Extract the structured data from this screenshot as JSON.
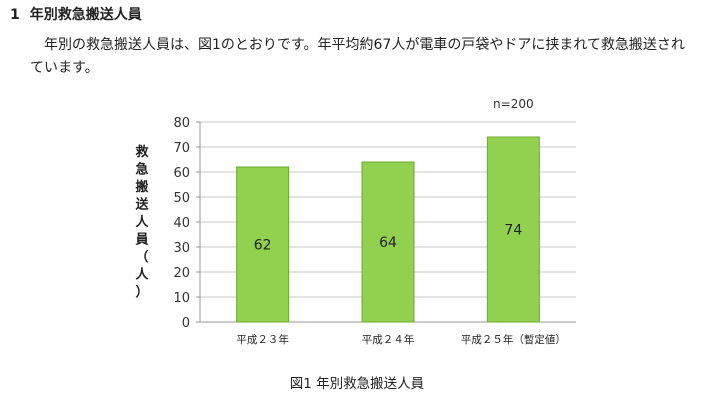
{
  "heading": {
    "number": "1",
    "title": "年別救急搬送人員"
  },
  "paragraph": "年別の救急搬送人員は、図1のとおりです。年平均約67人が電車の戸袋やドアに挟まれて救急搬送されています。",
  "caption": "図1 年別救急搬送人員",
  "chart_data": {
    "type": "bar",
    "categories": [
      "平成２３年",
      "平成２４年",
      "平成２５年（暫定値）"
    ],
    "values": [
      62,
      64,
      74
    ],
    "data_labels": [
      "62",
      "64",
      "74"
    ],
    "ylabel": "救急搬送人員（人）",
    "ylim": [
      0,
      80
    ],
    "yticks": [
      "0",
      "10",
      "20",
      "30",
      "40",
      "50",
      "60",
      "70",
      "80"
    ],
    "annotation": "n=200",
    "grid": true,
    "legend": "none",
    "bar_color": "#92d050",
    "bar_edge_color": "#6fa830"
  }
}
